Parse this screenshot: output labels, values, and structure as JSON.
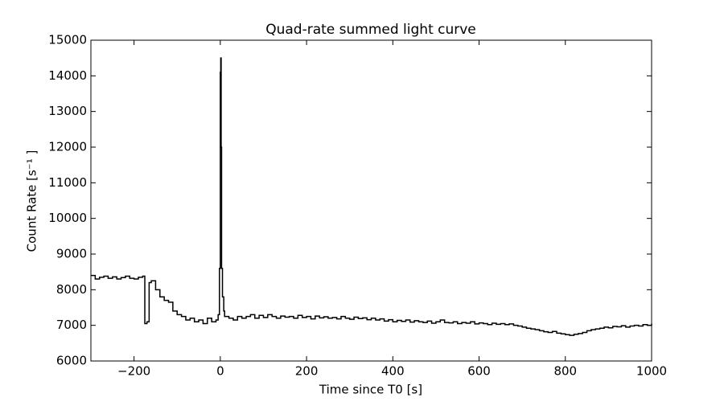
{
  "chart_data": {
    "type": "line",
    "step": true,
    "title": "Quad-rate summed light curve",
    "xlabel": "Time since T0 [s]",
    "ylabel": "Count Rate [s⁻¹ ]",
    "xlim": [
      -300,
      1000
    ],
    "xticks": [
      {
        "value": -200,
        "label": "−200"
      },
      0,
      200,
      400,
      600,
      800,
      1000
    ],
    "ylim": [
      6000,
      15000
    ],
    "yticks": [
      6000,
      7000,
      8000,
      9000,
      10000,
      11000,
      12000,
      13000,
      14000,
      15000
    ],
    "color": "#000000",
    "x": [
      -300,
      -290,
      -280,
      -270,
      -260,
      -250,
      -240,
      -230,
      -220,
      -210,
      -200,
      -190,
      -180,
      -175,
      -170,
      -165,
      -160,
      -150,
      -140,
      -130,
      -120,
      -110,
      -100,
      -90,
      -80,
      -70,
      -60,
      -50,
      -40,
      -30,
      -20,
      -10,
      -5,
      -2,
      0,
      1,
      2,
      3,
      5,
      8,
      10,
      20,
      30,
      40,
      50,
      60,
      70,
      80,
      90,
      100,
      110,
      120,
      130,
      140,
      150,
      160,
      170,
      180,
      190,
      200,
      210,
      220,
      230,
      240,
      250,
      260,
      270,
      280,
      290,
      300,
      310,
      320,
      330,
      340,
      350,
      360,
      370,
      380,
      390,
      400,
      410,
      420,
      430,
      440,
      450,
      460,
      470,
      480,
      490,
      500,
      510,
      520,
      530,
      540,
      550,
      560,
      570,
      580,
      590,
      600,
      610,
      620,
      630,
      640,
      650,
      660,
      670,
      680,
      690,
      700,
      710,
      720,
      730,
      740,
      750,
      760,
      770,
      780,
      790,
      800,
      810,
      820,
      830,
      840,
      850,
      860,
      870,
      880,
      890,
      900,
      910,
      920,
      930,
      940,
      950,
      960,
      970,
      980,
      990,
      1000
    ],
    "values": [
      8400,
      8300,
      8350,
      8380,
      8320,
      8360,
      8300,
      8340,
      8380,
      8320,
      8300,
      8350,
      8380,
      7050,
      7100,
      8200,
      8250,
      8000,
      7800,
      7700,
      7650,
      7400,
      7300,
      7250,
      7150,
      7200,
      7100,
      7150,
      7050,
      7200,
      7100,
      7150,
      7300,
      8600,
      14100,
      14500,
      12000,
      8600,
      7800,
      7400,
      7250,
      7200,
      7150,
      7250,
      7200,
      7250,
      7300,
      7200,
      7280,
      7220,
      7300,
      7250,
      7200,
      7260,
      7230,
      7250,
      7200,
      7280,
      7220,
      7250,
      7180,
      7260,
      7210,
      7240,
      7200,
      7220,
      7180,
      7250,
      7200,
      7170,
      7230,
      7190,
      7210,
      7160,
      7200,
      7150,
      7180,
      7120,
      7160,
      7100,
      7140,
      7110,
      7150,
      7090,
      7130,
      7100,
      7080,
      7120,
      7060,
      7100,
      7150,
      7080,
      7070,
      7100,
      7050,
      7080,
      7060,
      7100,
      7040,
      7070,
      7050,
      7020,
      7060,
      7030,
      7050,
      7020,
      7040,
      7000,
      6980,
      6950,
      6920,
      6900,
      6880,
      6850,
      6820,
      6800,
      6830,
      6780,
      6760,
      6740,
      6720,
      6750,
      6770,
      6800,
      6850,
      6880,
      6900,
      6920,
      6950,
      6930,
      6970,
      6960,
      6990,
      6950,
      6980,
      7000,
      6980,
      7020,
      7000,
      7050
    ]
  }
}
